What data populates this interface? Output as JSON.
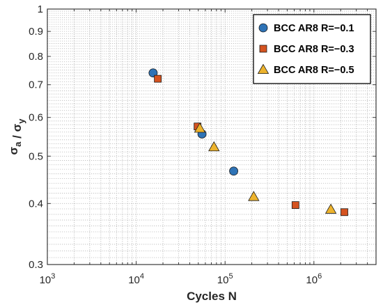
{
  "chart_data": {
    "type": "scatter",
    "title": "",
    "xlabel": "Cycles N",
    "ylabel": "σ_a / σ_y",
    "x_scale": "log",
    "y_scale": "log",
    "xlim": [
      1000,
      5000000
    ],
    "ylim": [
      0.3,
      1
    ],
    "grid": true,
    "legend_position": "top-right",
    "x_ticks": [
      {
        "value": 1000,
        "base": "10",
        "exp": "3"
      },
      {
        "value": 10000,
        "base": "10",
        "exp": "4"
      },
      {
        "value": 100000,
        "base": "10",
        "exp": "5"
      },
      {
        "value": 1000000,
        "base": "10",
        "exp": "6"
      }
    ],
    "y_ticks": [
      {
        "value": 0.3,
        "label": "0.3"
      },
      {
        "value": 0.4,
        "label": "0.4"
      },
      {
        "value": 0.5,
        "label": "0.5"
      },
      {
        "value": 0.6,
        "label": "0.6"
      },
      {
        "value": 0.7,
        "label": "0.7"
      },
      {
        "value": 0.8,
        "label": "0.8"
      },
      {
        "value": 0.9,
        "label": "0.9"
      },
      {
        "value": 1,
        "label": "1"
      }
    ],
    "series": [
      {
        "name": "BCC AR8 R=−0.1",
        "marker": "circle",
        "color": "#2E73B6",
        "points": [
          [
            15500,
            0.74
          ],
          [
            55000,
            0.555
          ],
          [
            125000,
            0.466
          ]
        ]
      },
      {
        "name": "BCC AR8 R=−0.3",
        "marker": "square",
        "color": "#D55320",
        "points": [
          [
            17500,
            0.72
          ],
          [
            49000,
            0.575
          ],
          [
            620000,
            0.397
          ],
          [
            2200000,
            0.384
          ]
        ]
      },
      {
        "name": "BCC AR8 R=−0.5",
        "marker": "triangle",
        "color": "#EDB32D",
        "points": [
          [
            52000,
            0.57
          ],
          [
            75000,
            0.522
          ],
          [
            210000,
            0.413
          ],
          [
            1550000,
            0.389
          ]
        ]
      }
    ]
  }
}
